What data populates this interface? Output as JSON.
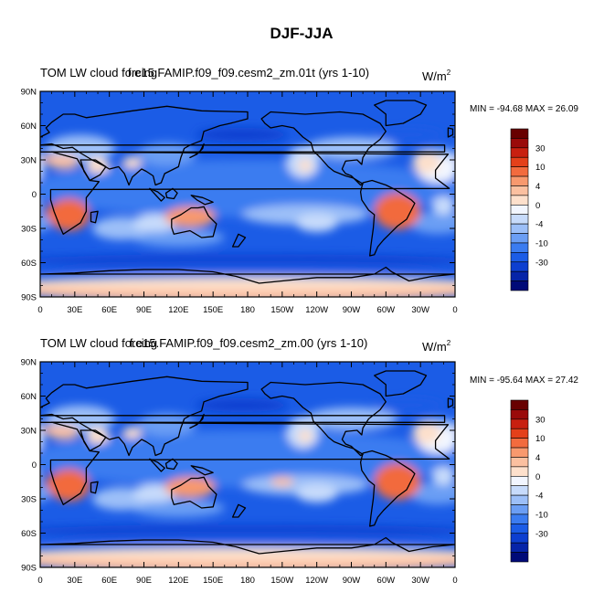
{
  "figure_title": "DJF-JJA",
  "colors": {
    "levels": [
      "#000a78",
      "#0624a8",
      "#0d3fd0",
      "#1b5ce6",
      "#3b7cf0",
      "#6b9ef4",
      "#9cbff8",
      "#c7dbfb",
      "#f2f6ff",
      "#fde0cc",
      "#fbc0a0",
      "#f8996e",
      "#f26b3e",
      "#e4401a",
      "#c82010",
      "#9a0a0a",
      "#680000"
    ],
    "land": "#000000"
  },
  "chart_data": [
    {
      "type": "heatmap",
      "title_left": "TOM LW cloud forcing",
      "title_center": "f.e15.FAMIP.f09_f09.cesm2_zm.01t (yrs 1-10)",
      "units": "W/m",
      "units_sup": "2",
      "stats": "MIN = -94.68 MAX =  26.09",
      "min": -94.68,
      "max": 26.09,
      "x_ticks": [
        "0",
        "30E",
        "60E",
        "90E",
        "120E",
        "150E",
        "180",
        "150W",
        "120W",
        "90W",
        "60W",
        "30W",
        "0"
      ],
      "y_ticks": [
        "90N",
        "60N",
        "30N",
        "0",
        "30S",
        "60S",
        "90S"
      ],
      "colorbar_labels": [
        "30",
        "10",
        "4",
        "0",
        "-4",
        "-10",
        "-30"
      ]
    },
    {
      "type": "heatmap",
      "title_left": "TOM LW cloud forcing",
      "title_center": "f.e15.FAMIP.f09_f09.cesm2_zm.00 (yrs 1-10)",
      "units": "W/m",
      "units_sup": "2",
      "stats": "MIN = -95.64 MAX =  27.42",
      "min": -95.64,
      "max": 27.42,
      "x_ticks": [
        "0",
        "30E",
        "60E",
        "90E",
        "120E",
        "150E",
        "180",
        "150W",
        "120W",
        "90W",
        "60W",
        "30W",
        "0"
      ],
      "y_ticks": [
        "90N",
        "60N",
        "30N",
        "0",
        "30S",
        "60S",
        "90S"
      ],
      "colorbar_labels": [
        "30",
        "10",
        "4",
        "0",
        "-4",
        "-10",
        "-30"
      ]
    }
  ]
}
